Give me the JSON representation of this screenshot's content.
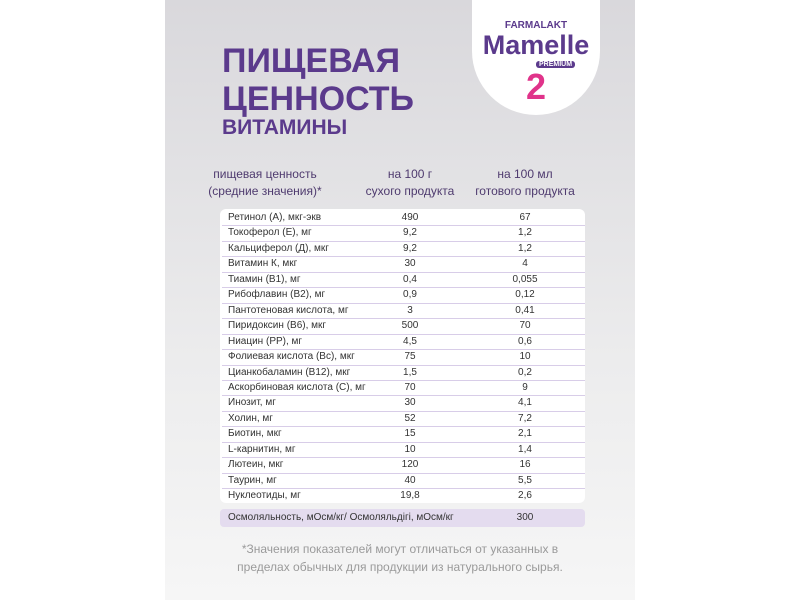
{
  "logo": {
    "maker": "FARMALAKT",
    "brand": "Mamelle",
    "line": "PREMIUM",
    "stage": "2"
  },
  "title": {
    "line1": "ПИЩЕВАЯ",
    "line2": "ЦЕННОСТЬ",
    "subtitle": "ВИТАМИНЫ"
  },
  "table": {
    "header": [
      [
        "пищевая ценность",
        "(средние значения)*"
      ],
      [
        "на 100 г",
        "сухого продукта"
      ],
      [
        "на 100 мл",
        "готового продукта"
      ]
    ],
    "rows": [
      [
        "Ретинол (А), мкг-экв",
        "490",
        "67"
      ],
      [
        "Токоферол (Е), мг",
        "9,2",
        "1,2"
      ],
      [
        "Кальциферол (Д), мкг",
        "9,2",
        "1,2"
      ],
      [
        "Витамин К, мкг",
        "30",
        "4"
      ],
      [
        "Тиамин (В1), мг",
        "0,4",
        "0,055"
      ],
      [
        "Рибофлавин (В2), мг",
        "0,9",
        "0,12"
      ],
      [
        "Пантотеновая кислота, мг",
        "3",
        "0,41"
      ],
      [
        "Пиридоксин (В6), мкг",
        "500",
        "70"
      ],
      [
        "Ниацин (РР), мг",
        "4,5",
        "0,6"
      ],
      [
        "Фолиевая кислота (Вс), мкг",
        "75",
        "10"
      ],
      [
        "Цианкобаламин (В12), мкг",
        "1,5",
        "0,2"
      ],
      [
        "Аскорбиновая кислота (С), мг",
        "70",
        "9"
      ],
      [
        "Инозит, мг",
        "30",
        "4,1"
      ],
      [
        "Холин, мг",
        "52",
        "7,2"
      ],
      [
        "Биотин, мкг",
        "15",
        "2,1"
      ],
      [
        "L-карнитин, мг",
        "10",
        "1,4"
      ],
      [
        "Лютеин, мкг",
        "120",
        "16"
      ],
      [
        "Таурин, мг",
        "40",
        "5,5"
      ],
      [
        "Нуклеотиды, мг",
        "19,8",
        "2,6"
      ]
    ],
    "footer": [
      "Осмоляльность, мОсм/кг/ Осмоляльдігі, мОсм/кг",
      "300"
    ]
  },
  "footnote": [
    "*Значения показателей могут отличаться от указанных в",
    "пределах обычных для продукции из натурального сырья."
  ]
}
